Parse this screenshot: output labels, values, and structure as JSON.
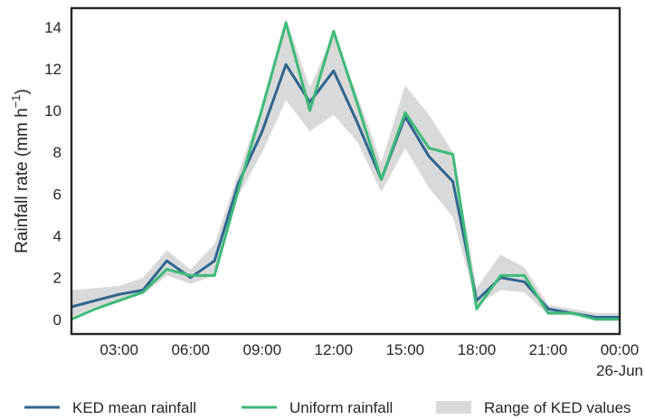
{
  "chart_data": {
    "type": "line",
    "title": "",
    "xlabel": "",
    "ylabel_main": "Rainfall rate (mm h",
    "ylabel_sup": "−1",
    "ylabel_close": ")",
    "x_unit": "hour",
    "xlim": [
      1,
      24
    ],
    "ylim": [
      -0.7,
      14.9
    ],
    "yticks": [
      0,
      2,
      4,
      6,
      8,
      10,
      12,
      14
    ],
    "xticks": [
      {
        "x": 3,
        "label": "03:00",
        "sub": ""
      },
      {
        "x": 6,
        "label": "06:00",
        "sub": ""
      },
      {
        "x": 9,
        "label": "09:00",
        "sub": ""
      },
      {
        "x": 12,
        "label": "12:00",
        "sub": ""
      },
      {
        "x": 15,
        "label": "15:00",
        "sub": ""
      },
      {
        "x": 18,
        "label": "18:00",
        "sub": ""
      },
      {
        "x": 21,
        "label": "21:00",
        "sub": ""
      },
      {
        "x": 24,
        "label": "00:00",
        "sub": "26-Jun"
      }
    ],
    "grid": false,
    "legend_position": "bottom",
    "x": [
      1,
      2,
      3,
      4,
      5,
      6,
      7,
      8,
      9,
      10,
      11,
      12,
      13,
      14,
      15,
      16,
      17,
      18,
      19,
      20,
      21,
      22,
      23,
      24
    ],
    "series": [
      {
        "name": "KED mean rainfall",
        "color": "#2f6690",
        "values": [
          0.6,
          0.9,
          1.2,
          1.4,
          2.8,
          2.0,
          2.8,
          6.5,
          9.0,
          12.2,
          10.4,
          11.9,
          9.4,
          6.7,
          9.7,
          7.8,
          6.6,
          0.9,
          2.0,
          1.8,
          0.5,
          0.3,
          0.1,
          0.1
        ]
      },
      {
        "name": "Uniform rainfall",
        "color": "#3dba78",
        "values": [
          0.0,
          0.5,
          0.9,
          1.3,
          2.4,
          2.1,
          2.1,
          6.2,
          10.1,
          14.2,
          10.0,
          13.8,
          10.3,
          6.7,
          9.9,
          8.2,
          7.9,
          0.5,
          2.1,
          2.1,
          0.3,
          0.3,
          0.0,
          0.0
        ]
      },
      {
        "name": "Range of KED values",
        "color": "#d9d9d9",
        "type": "band",
        "lower": [
          0.1,
          0.6,
          0.9,
          1.2,
          2.1,
          1.7,
          2.1,
          5.9,
          8.0,
          10.5,
          9.0,
          9.8,
          8.5,
          6.1,
          8.2,
          6.3,
          4.9,
          0.7,
          1.4,
          1.3,
          0.2,
          0.2,
          0.0,
          0.0
        ],
        "upper": [
          1.4,
          1.5,
          1.6,
          2.0,
          3.3,
          2.4,
          3.6,
          7.0,
          10.3,
          14.4,
          11.1,
          13.7,
          10.7,
          7.5,
          11.2,
          9.8,
          8.0,
          1.5,
          3.1,
          2.5,
          0.7,
          0.5,
          0.3,
          0.3
        ]
      }
    ]
  },
  "legend": {
    "items": [
      {
        "label": "KED mean rainfall",
        "kind": "line",
        "color": "#2f6690"
      },
      {
        "label": "Uniform rainfall",
        "kind": "line",
        "color": "#3dba78"
      },
      {
        "label": "Range of KED values",
        "kind": "patch",
        "color": "#d9d9d9"
      }
    ]
  }
}
